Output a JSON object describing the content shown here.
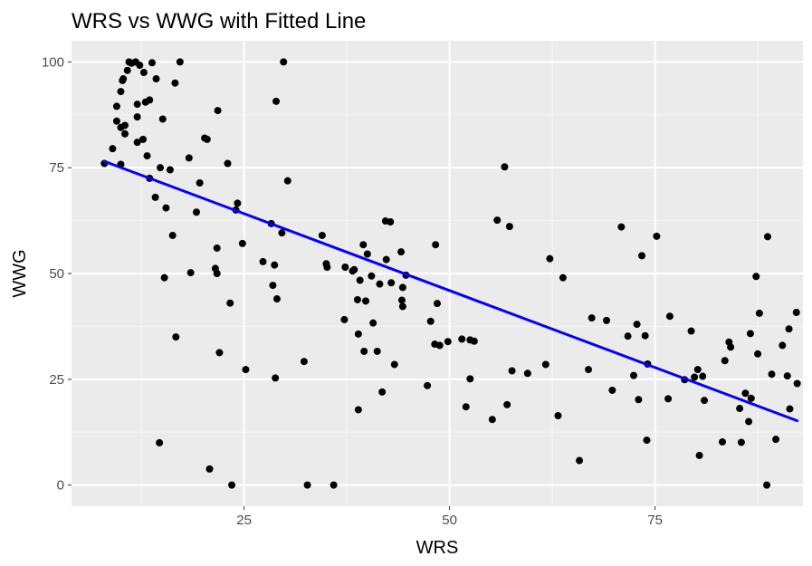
{
  "chart_data": {
    "type": "scatter",
    "title": "WRS vs WWG with Fitted Line",
    "xlabel": "WRS",
    "ylabel": "WWG",
    "xlim": [
      4,
      93
    ],
    "ylim": [
      -5,
      105
    ],
    "x_ticks": [
      25,
      50,
      75
    ],
    "x_tick_labels": [
      "25",
      "50",
      "75"
    ],
    "y_ticks": [
      0,
      25,
      50,
      75,
      100
    ],
    "y_tick_labels": [
      "0",
      "25",
      "50",
      "75",
      "100"
    ],
    "grid": true,
    "legend": "none",
    "colors": {
      "panel_background": "#ebebeb",
      "grid_major": "#ffffff",
      "grid_minor": "#f5f5f5",
      "points": "#000000",
      "fit_line": "#0000ff",
      "tick_text": "#4d4d4d",
      "tick_mark": "#333333"
    },
    "points": [
      [
        8,
        76
      ],
      [
        9,
        79.5
      ],
      [
        9.5,
        89.5
      ],
      [
        9.5,
        86
      ],
      [
        10,
        75.8
      ],
      [
        10,
        84.5
      ],
      [
        10,
        93
      ],
      [
        10.2,
        95.6
      ],
      [
        10.3,
        96
      ],
      [
        10.5,
        83
      ],
      [
        10.5,
        85
      ],
      [
        10.8,
        98
      ],
      [
        11,
        100
      ],
      [
        11.3,
        99.7
      ],
      [
        11.8,
        100
      ],
      [
        12,
        81
      ],
      [
        12,
        87
      ],
      [
        12,
        90
      ],
      [
        12.3,
        99.2
      ],
      [
        12.7,
        81.7
      ],
      [
        12.8,
        97.5
      ],
      [
        13,
        90.5
      ],
      [
        13.2,
        77.8
      ],
      [
        13.5,
        91
      ],
      [
        13.5,
        72.5
      ],
      [
        13.8,
        99.8
      ],
      [
        14.2,
        68
      ],
      [
        14.3,
        96
      ],
      [
        14.7,
        10
      ],
      [
        14.8,
        75
      ],
      [
        15.1,
        86.5
      ],
      [
        15.3,
        49
      ],
      [
        15.5,
        65.5
      ],
      [
        16,
        74.5
      ],
      [
        16.3,
        59
      ],
      [
        16.6,
        95
      ],
      [
        16.7,
        35
      ],
      [
        17.2,
        100
      ],
      [
        18.3,
        77.3
      ],
      [
        18.5,
        50.2
      ],
      [
        19.2,
        64.5
      ],
      [
        19.6,
        71.4
      ],
      [
        20.2,
        82
      ],
      [
        20.5,
        81.7
      ],
      [
        20.8,
        3.8
      ],
      [
        21.5,
        51.2
      ],
      [
        21.7,
        50
      ],
      [
        21.7,
        56
      ],
      [
        21.8,
        88.5
      ],
      [
        22,
        31.3
      ],
      [
        23,
        76
      ],
      [
        23.3,
        43
      ],
      [
        23.5,
        0
      ],
      [
        24,
        65
      ],
      [
        24.2,
        66.6
      ],
      [
        24.8,
        57.1
      ],
      [
        25.2,
        27.3
      ],
      [
        27.3,
        52.8
      ],
      [
        28.3,
        61.8
      ],
      [
        28.5,
        47.2
      ],
      [
        28.7,
        52
      ],
      [
        28.8,
        25.3
      ],
      [
        28.9,
        90.7
      ],
      [
        29,
        44
      ],
      [
        29.6,
        59.6
      ],
      [
        29.8,
        100
      ],
      [
        30.3,
        71.9
      ],
      [
        32.3,
        29.2
      ],
      [
        32.7,
        0
      ],
      [
        34.5,
        59
      ],
      [
        35,
        52.3
      ],
      [
        35.1,
        51.5
      ],
      [
        35.9,
        0
      ],
      [
        37.2,
        39.1
      ],
      [
        37.3,
        51.5
      ],
      [
        38.2,
        50.6
      ],
      [
        38.4,
        50.9
      ],
      [
        38.8,
        43.8
      ],
      [
        38.9,
        17.8
      ],
      [
        38.9,
        35.7
      ],
      [
        39.1,
        48.4
      ],
      [
        39.5,
        56.8
      ],
      [
        39.6,
        31.6
      ],
      [
        39.8,
        43.5
      ],
      [
        40,
        54.6
      ],
      [
        40.5,
        49.4
      ],
      [
        40.7,
        38.3
      ],
      [
        41.2,
        31.6
      ],
      [
        41.5,
        47.5
      ],
      [
        41.8,
        22
      ],
      [
        42.2,
        62.4
      ],
      [
        42.3,
        53.3
      ],
      [
        42.8,
        62.2
      ],
      [
        42.9,
        47.8
      ],
      [
        43.3,
        28.5
      ],
      [
        44.1,
        55.1
      ],
      [
        44.2,
        43.7
      ],
      [
        44.3,
        42.2
      ],
      [
        44.3,
        46.7
      ],
      [
        44.7,
        49.6
      ],
      [
        47.3,
        23.5
      ],
      [
        47.7,
        38.7
      ],
      [
        48.2,
        33.3
      ],
      [
        48.3,
        56.8
      ],
      [
        48.5,
        42.9
      ],
      [
        48.8,
        33
      ],
      [
        49.8,
        33.9
      ],
      [
        51.5,
        34.5
      ],
      [
        52,
        18.5
      ],
      [
        52.5,
        34.3
      ],
      [
        52.5,
        25.1
      ],
      [
        53,
        34
      ],
      [
        55.2,
        15.5
      ],
      [
        55.8,
        62.6
      ],
      [
        56.7,
        75.2
      ],
      [
        57,
        19
      ],
      [
        57.3,
        61.1
      ],
      [
        57.6,
        27
      ],
      [
        59.5,
        26.4
      ],
      [
        61.7,
        28.5
      ],
      [
        62.2,
        53.5
      ],
      [
        63.2,
        16.4
      ],
      [
        63.8,
        49
      ],
      [
        65.8,
        5.8
      ],
      [
        66.9,
        27.3
      ],
      [
        67.3,
        39.5
      ],
      [
        69.1,
        38.9
      ],
      [
        69.8,
        22.4
      ],
      [
        70.9,
        61
      ],
      [
        71.7,
        35.2
      ],
      [
        72.4,
        25.9
      ],
      [
        72.8,
        38
      ],
      [
        73,
        20.2
      ],
      [
        73.4,
        54.2
      ],
      [
        73.8,
        35.3
      ],
      [
        74,
        10.6
      ],
      [
        74.1,
        28.6
      ],
      [
        75.2,
        58.8
      ],
      [
        76.6,
        20.4
      ],
      [
        76.8,
        39.9
      ],
      [
        78.6,
        24.9
      ],
      [
        79.4,
        36.4
      ],
      [
        79.8,
        25.5
      ],
      [
        80.2,
        27.3
      ],
      [
        80.4,
        7
      ],
      [
        80.8,
        25.7
      ],
      [
        81,
        20
      ],
      [
        83.2,
        10.2
      ],
      [
        83.5,
        29.4
      ],
      [
        84,
        33.8
      ],
      [
        84.2,
        32.6
      ],
      [
        85.3,
        18.1
      ],
      [
        85.5,
        10.1
      ],
      [
        86,
        21.7
      ],
      [
        86.4,
        15
      ],
      [
        86.6,
        35.8
      ],
      [
        86.7,
        20.5
      ],
      [
        87.3,
        49.3
      ],
      [
        87.5,
        31
      ],
      [
        87.7,
        40.6
      ],
      [
        88.6,
        0
      ],
      [
        88.7,
        58.7
      ],
      [
        89.2,
        26.2
      ],
      [
        89.7,
        10.8
      ],
      [
        90.5,
        33
      ],
      [
        91.1,
        25.8
      ],
      [
        91.3,
        36.9
      ],
      [
        91.4,
        18
      ],
      [
        92.2,
        40.8
      ],
      [
        92.3,
        24
      ]
    ],
    "fit_line": {
      "x": [
        8,
        92.3
      ],
      "y": [
        76.5,
        15.2
      ]
    }
  }
}
